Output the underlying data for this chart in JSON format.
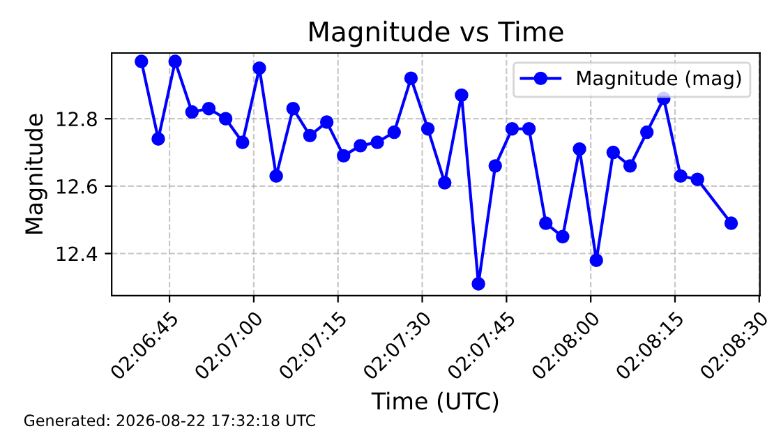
{
  "chart_data": {
    "type": "line",
    "title": "Magnitude vs Time",
    "xlabel": "Time (UTC)",
    "ylabel": "Magnitude",
    "x": [
      2.111111,
      2.111944,
      2.112778,
      2.113611,
      2.114444,
      2.115278,
      2.116111,
      2.116944,
      2.117778,
      2.118611,
      2.119444,
      2.120278,
      2.121111,
      2.121944,
      2.122778,
      2.123611,
      2.124444,
      2.125278,
      2.126111,
      2.126944,
      2.127778,
      2.128611,
      2.129444,
      2.130278,
      2.131111,
      2.131944,
      2.132778,
      2.133611,
      2.134444,
      2.135278,
      2.136111,
      2.136944,
      2.137778,
      2.138611,
      2.140278
    ],
    "series": [
      {
        "name": "Magnitude (mag)",
        "color": "#0000ff",
        "values": [
          12.97,
          12.74,
          12.97,
          12.82,
          12.83,
          12.8,
          12.73,
          12.95,
          12.63,
          12.83,
          12.75,
          12.79,
          12.69,
          12.72,
          12.73,
          12.76,
          12.92,
          12.77,
          12.61,
          12.87,
          12.31,
          12.66,
          12.77,
          12.77,
          12.49,
          12.45,
          12.71,
          12.38,
          12.7,
          12.66,
          12.76,
          12.86,
          12.63,
          12.62,
          12.49
        ]
      }
    ],
    "xlim": [
      2.10964,
      2.1417
    ],
    "xticks": [
      {
        "value": 2.1125,
        "label": "02:06:45"
      },
      {
        "value": 2.116667,
        "label": "02:07:00"
      },
      {
        "value": 2.120833,
        "label": "02:07:15"
      },
      {
        "value": 2.125,
        "label": "02:07:30"
      },
      {
        "value": 2.129167,
        "label": "02:07:45"
      },
      {
        "value": 2.133333,
        "label": "02:08:00"
      },
      {
        "value": 2.1375,
        "label": "02:08:15"
      },
      {
        "value": 2.141667,
        "label": "02:08:30"
      }
    ],
    "ylim": [
      12.275,
      12.995
    ],
    "yticks": [
      12.4,
      12.6,
      12.8
    ],
    "grid": true,
    "legend": "top right",
    "marker": "circle",
    "line_style": "solid",
    "annotations": [
      "Generated: 2026-08-22 17:32:18 UTC"
    ]
  }
}
